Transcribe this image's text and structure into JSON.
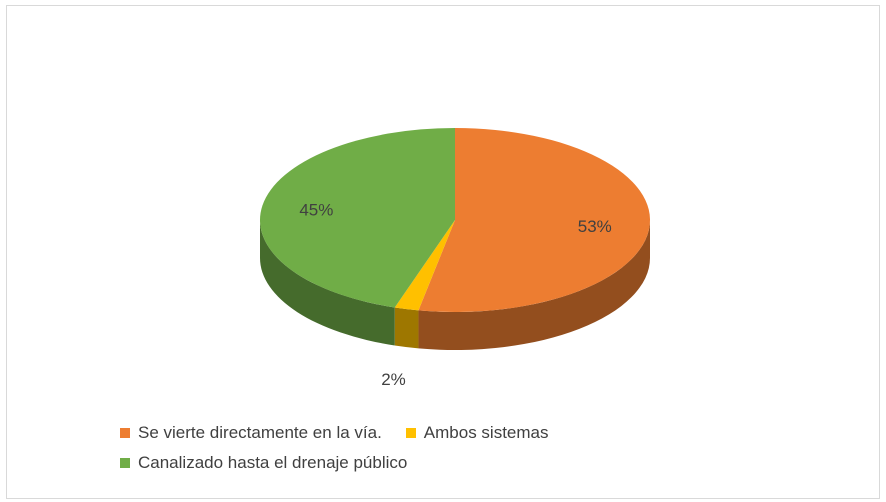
{
  "chart_data": {
    "type": "pie",
    "title": "",
    "slices": [
      {
        "label": "Se vierte directamente en la vía.",
        "value": 53,
        "display": "53%",
        "color": "#ED7D31"
      },
      {
        "label": "Ambos sistemas",
        "value": 2,
        "display": "2%",
        "color": "#FFC000"
      },
      {
        "label": "Canalizado hasta el drenaje público",
        "value": 45,
        "display": "45%",
        "color": "#70AD47"
      }
    ],
    "legend_placement": "bottom"
  }
}
